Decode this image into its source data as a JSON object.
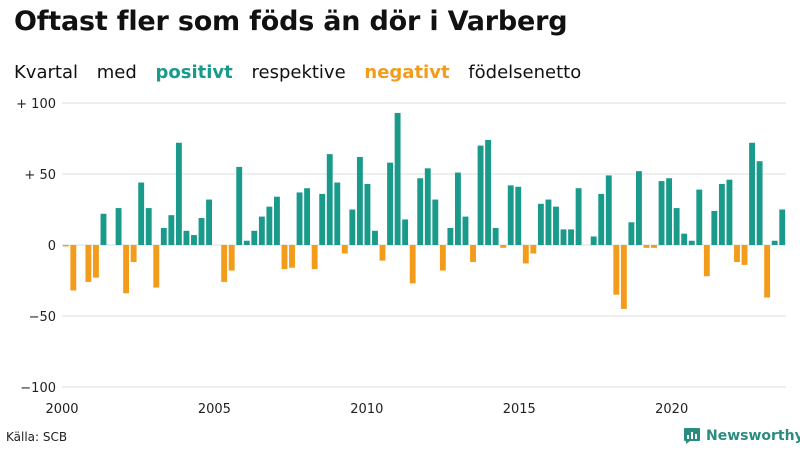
{
  "header": {
    "title": "Oftast fler som föds än dör i Varberg",
    "subtitle_parts": [
      "Kvartal",
      "med",
      "positivt",
      "respektive",
      "negativt",
      "födelsenetto"
    ]
  },
  "footer": {
    "source": "Källa: SCB",
    "brand": "Newsworthy"
  },
  "colors": {
    "positive": "#1a9a8a",
    "negative": "#f39c1b",
    "grid": "#dddddd",
    "brand": "#2a8c7e"
  },
  "chart_data": {
    "type": "bar",
    "title": "Oftast fler som föds än dör i Varberg",
    "xlabel": "",
    "ylabel": "",
    "ylim": [
      -100,
      100
    ],
    "x_range": [
      2000,
      2023.75
    ],
    "y_ticks": [
      100,
      50,
      0,
      -50,
      -100
    ],
    "y_tick_labels": [
      "+ 100",
      "+  50",
      "0",
      "−50",
      "−100"
    ],
    "x_ticks": [
      2000,
      2005,
      2010,
      2015,
      2020
    ],
    "x_tick_labels": [
      "2000",
      "2005",
      "2010",
      "2015",
      "2020"
    ],
    "series": [
      {
        "name": "Födelsenetto per kvartal",
        "start": "2000 Q1",
        "values": [
          -1,
          -32,
          0,
          -26,
          -23,
          22,
          0,
          26,
          -34,
          -12,
          44,
          26,
          -30,
          12,
          21,
          72,
          10,
          7,
          19,
          32,
          0,
          -26,
          -18,
          55,
          3,
          10,
          20,
          27,
          34,
          -17,
          -16,
          37,
          40,
          -17,
          36,
          64,
          44,
          -6,
          25,
          62,
          43,
          10,
          -11,
          58,
          93,
          18,
          -27,
          47,
          54,
          32,
          -18,
          12,
          51,
          20,
          -12,
          70,
          74,
          12,
          -2,
          42,
          41,
          -13,
          -6,
          29,
          32,
          27,
          11,
          11,
          40,
          0,
          6,
          36,
          49,
          -35,
          -45,
          16,
          52,
          -2,
          -2,
          45,
          47,
          26,
          8,
          3,
          39,
          -22,
          24,
          43,
          46,
          -12,
          -14,
          72,
          59,
          -37,
          3,
          25
        ]
      }
    ]
  }
}
